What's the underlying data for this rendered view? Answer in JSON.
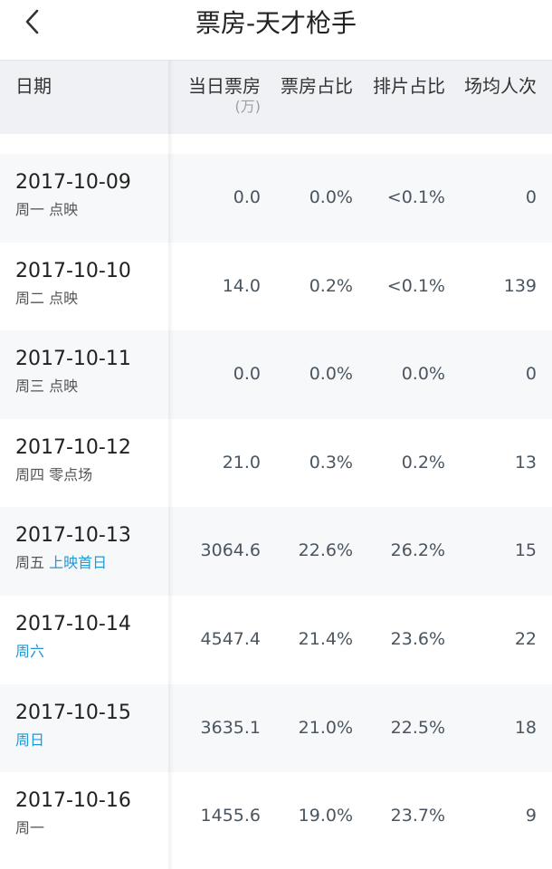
{
  "nav": {
    "title": "票房-天才枪手"
  },
  "table": {
    "headers": {
      "date": "日期",
      "daily_box_office": "当日票房",
      "daily_box_office_unit": "(万)",
      "box_office_share": "票房占比",
      "screening_share": "排片占比",
      "avg_attendance": "场均人次"
    },
    "rows": [
      {
        "date": "2017-10-09",
        "weekday": "周一",
        "tag": "点映",
        "tag_highlight": false,
        "box_office": "0.0",
        "box_share": "0.0%",
        "screen_share": "<0.1%",
        "avg": "0"
      },
      {
        "date": "2017-10-10",
        "weekday": "周二",
        "tag": "点映",
        "tag_highlight": false,
        "box_office": "14.0",
        "box_share": "0.2%",
        "screen_share": "<0.1%",
        "avg": "139"
      },
      {
        "date": "2017-10-11",
        "weekday": "周三",
        "tag": "点映",
        "tag_highlight": false,
        "box_office": "0.0",
        "box_share": "0.0%",
        "screen_share": "0.0%",
        "avg": "0"
      },
      {
        "date": "2017-10-12",
        "weekday": "周四",
        "tag": "零点场",
        "tag_highlight": false,
        "box_office": "21.0",
        "box_share": "0.3%",
        "screen_share": "0.2%",
        "avg": "13"
      },
      {
        "date": "2017-10-13",
        "weekday": "周五",
        "tag": "上映首日",
        "tag_highlight": true,
        "box_office": "3064.6",
        "box_share": "22.6%",
        "screen_share": "26.2%",
        "avg": "15"
      },
      {
        "date": "2017-10-14",
        "weekday": "周六",
        "tag": "",
        "tag_highlight": true,
        "box_office": "4547.4",
        "box_share": "21.4%",
        "screen_share": "23.6%",
        "avg": "22"
      },
      {
        "date": "2017-10-15",
        "weekday": "周日",
        "tag": "",
        "tag_highlight": true,
        "box_office": "3635.1",
        "box_share": "21.0%",
        "screen_share": "22.5%",
        "avg": "18"
      },
      {
        "date": "2017-10-16",
        "weekday": "周一",
        "tag": "",
        "tag_highlight": false,
        "box_office": "1455.6",
        "box_share": "19.0%",
        "screen_share": "23.7%",
        "avg": "9"
      }
    ]
  },
  "colors": {
    "highlight": "#1e9ad6",
    "header_bg": "#f0f1f4",
    "row_alt_bg": "#f7f8fa"
  },
  "icons": {
    "back": "chevron-left-icon"
  }
}
